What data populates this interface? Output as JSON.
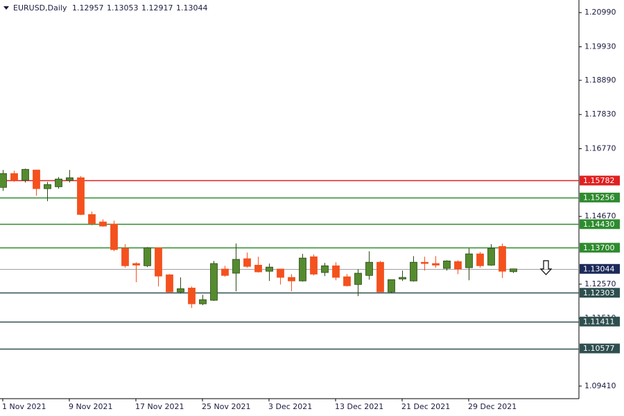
{
  "chart_data": {
    "type": "candlestick",
    "symbol": "EURUSD,Daily",
    "header_values": [
      "1.12957",
      "1.13053",
      "1.12917",
      "1.13044"
    ],
    "categories": [
      "1 Nov 2021",
      null,
      null,
      null,
      null,
      null,
      "9 Nov 2021",
      null,
      null,
      null,
      null,
      null,
      "17 Nov 2021",
      null,
      null,
      null,
      null,
      null,
      "25 Nov 2021",
      null,
      null,
      null,
      null,
      null,
      "3 Dec 2021",
      null,
      null,
      null,
      null,
      null,
      "13 Dec 2021",
      null,
      null,
      null,
      null,
      null,
      "21 Dec 2021",
      null,
      null,
      null,
      null,
      null,
      "29 Dec 2021",
      null,
      null,
      null,
      null
    ],
    "open": [
      1.1557,
      1.16,
      1.1579,
      1.1611,
      1.1553,
      1.1559,
      1.1579,
      1.1587,
      1.1473,
      1.145,
      1.1443,
      1.1368,
      1.1321,
      1.1314,
      1.137,
      1.1286,
      1.1233,
      1.1245,
      1.1196,
      1.1207,
      1.1304,
      1.1291,
      1.1336,
      1.1316,
      1.1297,
      1.1304,
      1.1278,
      1.1267,
      1.1342,
      1.1293,
      1.1314,
      1.128,
      1.1256,
      1.1284,
      1.1325,
      1.1233,
      1.1273,
      1.1267,
      1.1325,
      1.1321,
      1.1306,
      1.1327,
      1.1308,
      1.1351,
      1.1316,
      1.1374,
      1.12957
    ],
    "high": [
      1.1611,
      1.1609,
      1.1615,
      1.1611,
      1.1574,
      1.1589,
      1.1611,
      1.1592,
      1.1482,
      1.1458,
      1.1454,
      1.1381,
      1.1325,
      1.1372,
      1.137,
      1.1288,
      1.1278,
      1.125,
      1.1224,
      1.1329,
      1.1314,
      1.1383,
      1.1355,
      1.1342,
      1.1321,
      1.1304,
      1.1288,
      1.1351,
      1.1349,
      1.1323,
      1.1325,
      1.1288,
      1.1304,
      1.1359,
      1.1329,
      1.1271,
      1.1299,
      1.1344,
      1.1342,
      1.1344,
      1.1331,
      1.1331,
      1.1368,
      1.1357,
      1.1381,
      1.1383,
      1.13053
    ],
    "low": [
      1.1546,
      1.1574,
      1.1572,
      1.1531,
      1.1514,
      1.1553,
      1.1572,
      1.1471,
      1.1439,
      1.1435,
      1.1359,
      1.1308,
      1.1263,
      1.131,
      1.125,
      1.123,
      1.1228,
      1.1183,
      1.1192,
      1.1205,
      1.128,
      1.1235,
      1.1308,
      1.1293,
      1.1267,
      1.1256,
      1.1235,
      1.1265,
      1.1284,
      1.1282,
      1.1269,
      1.125,
      1.122,
      1.1271,
      1.1233,
      1.123,
      1.1267,
      1.1265,
      1.1299,
      1.1308,
      1.1299,
      1.1288,
      1.1269,
      1.1308,
      1.1314,
      1.1276,
      1.12917
    ],
    "close": [
      1.16,
      1.1579,
      1.1613,
      1.1553,
      1.1566,
      1.1583,
      1.1587,
      1.1473,
      1.1445,
      1.1437,
      1.1364,
      1.1314,
      1.1316,
      1.137,
      1.1282,
      1.1233,
      1.1243,
      1.1196,
      1.1209,
      1.1321,
      1.1284,
      1.1334,
      1.1312,
      1.1295,
      1.131,
      1.1278,
      1.1267,
      1.1338,
      1.1288,
      1.1314,
      1.1278,
      1.1252,
      1.1291,
      1.1325,
      1.1233,
      1.1271,
      1.1278,
      1.1325,
      1.1321,
      1.1316,
      1.1329,
      1.1304,
      1.1351,
      1.1314,
      1.1368,
      1.1297,
      1.13044
    ],
    "up_color": "#558b2f",
    "down_color": "#f4511e",
    "ylim": [
      1.0902,
      1.2138
    ],
    "yticks": [
      {
        "value": 1.2099,
        "label": "1.20990"
      },
      {
        "value": 1.1993,
        "label": "1.19930"
      },
      {
        "value": 1.1889,
        "label": "1.18890"
      },
      {
        "value": 1.1783,
        "label": "1.17830"
      },
      {
        "value": 1.1677,
        "label": "1.16770"
      },
      {
        "value": 1.1467,
        "label": "1.14670"
      },
      {
        "value": 1.1257,
        "label": "1.12570"
      },
      {
        "value": 1.1151,
        "label": "1.11510"
      },
      {
        "value": 1.0941,
        "label": "1.09410"
      }
    ],
    "levels": [
      {
        "value": 1.15782,
        "label": "1.15782",
        "color": "#e02020"
      },
      {
        "value": 1.15256,
        "label": "1.15256",
        "color": "#2e8b2e"
      },
      {
        "value": 1.1443,
        "label": "1.14430",
        "color": "#2e8b2e"
      },
      {
        "value": 1.137,
        "label": "1.13700",
        "color": "#2e8b2e"
      },
      {
        "value": 1.13044,
        "label": "1.13044",
        "color": "#1c2a5a"
      },
      {
        "value": 1.12303,
        "label": "1.12303",
        "color": "#2f4f4f"
      },
      {
        "value": 1.11411,
        "label": "1.11411",
        "color": "#2f4f4f"
      },
      {
        "value": 1.10577,
        "label": "1.10577",
        "color": "#2f4f4f"
      }
    ]
  }
}
